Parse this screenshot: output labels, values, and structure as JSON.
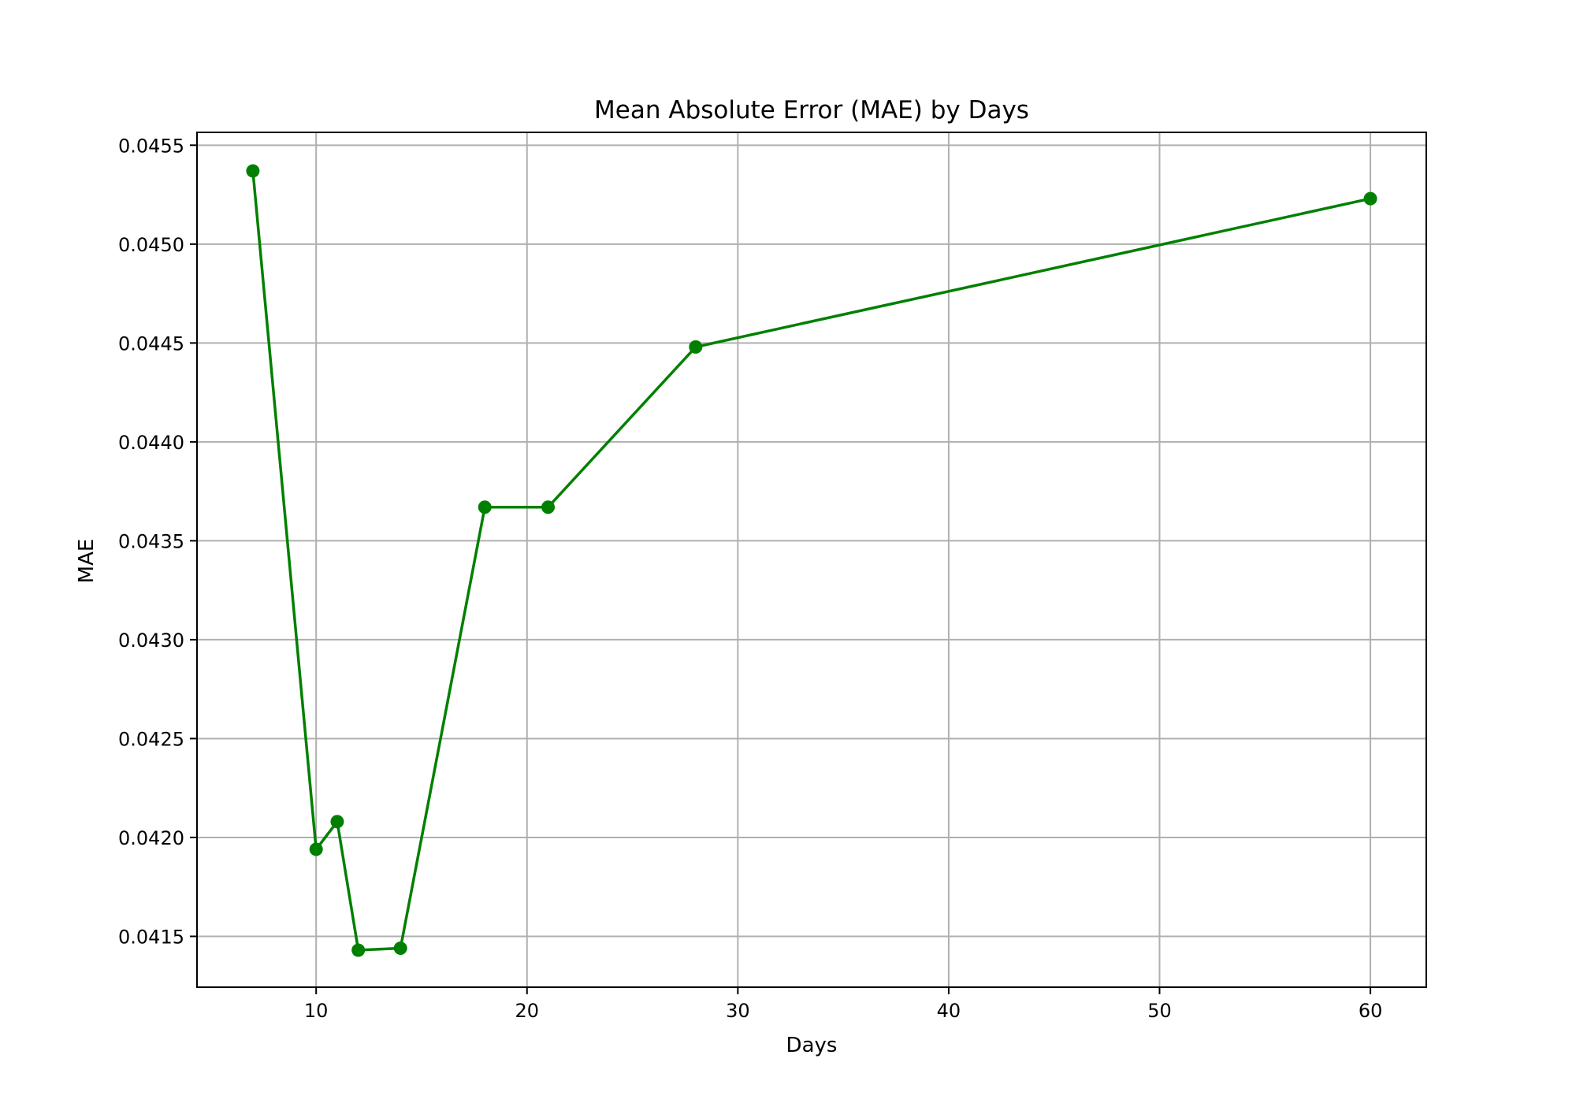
{
  "chart_data": {
    "type": "line",
    "title": "Mean Absolute Error (MAE) by Days",
    "xlabel": "Days",
    "ylabel": "MAE",
    "xlim": [
      4.35,
      62.65
    ],
    "ylim": [
      0.041243,
      0.045565
    ],
    "xticks": [
      "10",
      "20",
      "30",
      "40",
      "50",
      "60"
    ],
    "xtick_values": [
      10,
      20,
      30,
      40,
      50,
      60
    ],
    "yticks": [
      "0.0415",
      "0.0420",
      "0.0425",
      "0.0430",
      "0.0435",
      "0.0440",
      "0.0445",
      "0.0450",
      "0.0455"
    ],
    "ytick_values": [
      0.0415,
      0.042,
      0.0425,
      0.043,
      0.0435,
      0.044,
      0.0445,
      0.045,
      0.0455
    ],
    "grid": true,
    "series": [
      {
        "color": "#008000",
        "marker": "circle",
        "x": [
          7,
          10,
          11,
          12,
          14,
          18,
          21,
          28,
          60
        ],
        "y": [
          0.04537,
          0.04194,
          0.04208,
          0.04143,
          0.04144,
          0.04367,
          0.04367,
          0.04448,
          0.04523
        ]
      }
    ]
  }
}
